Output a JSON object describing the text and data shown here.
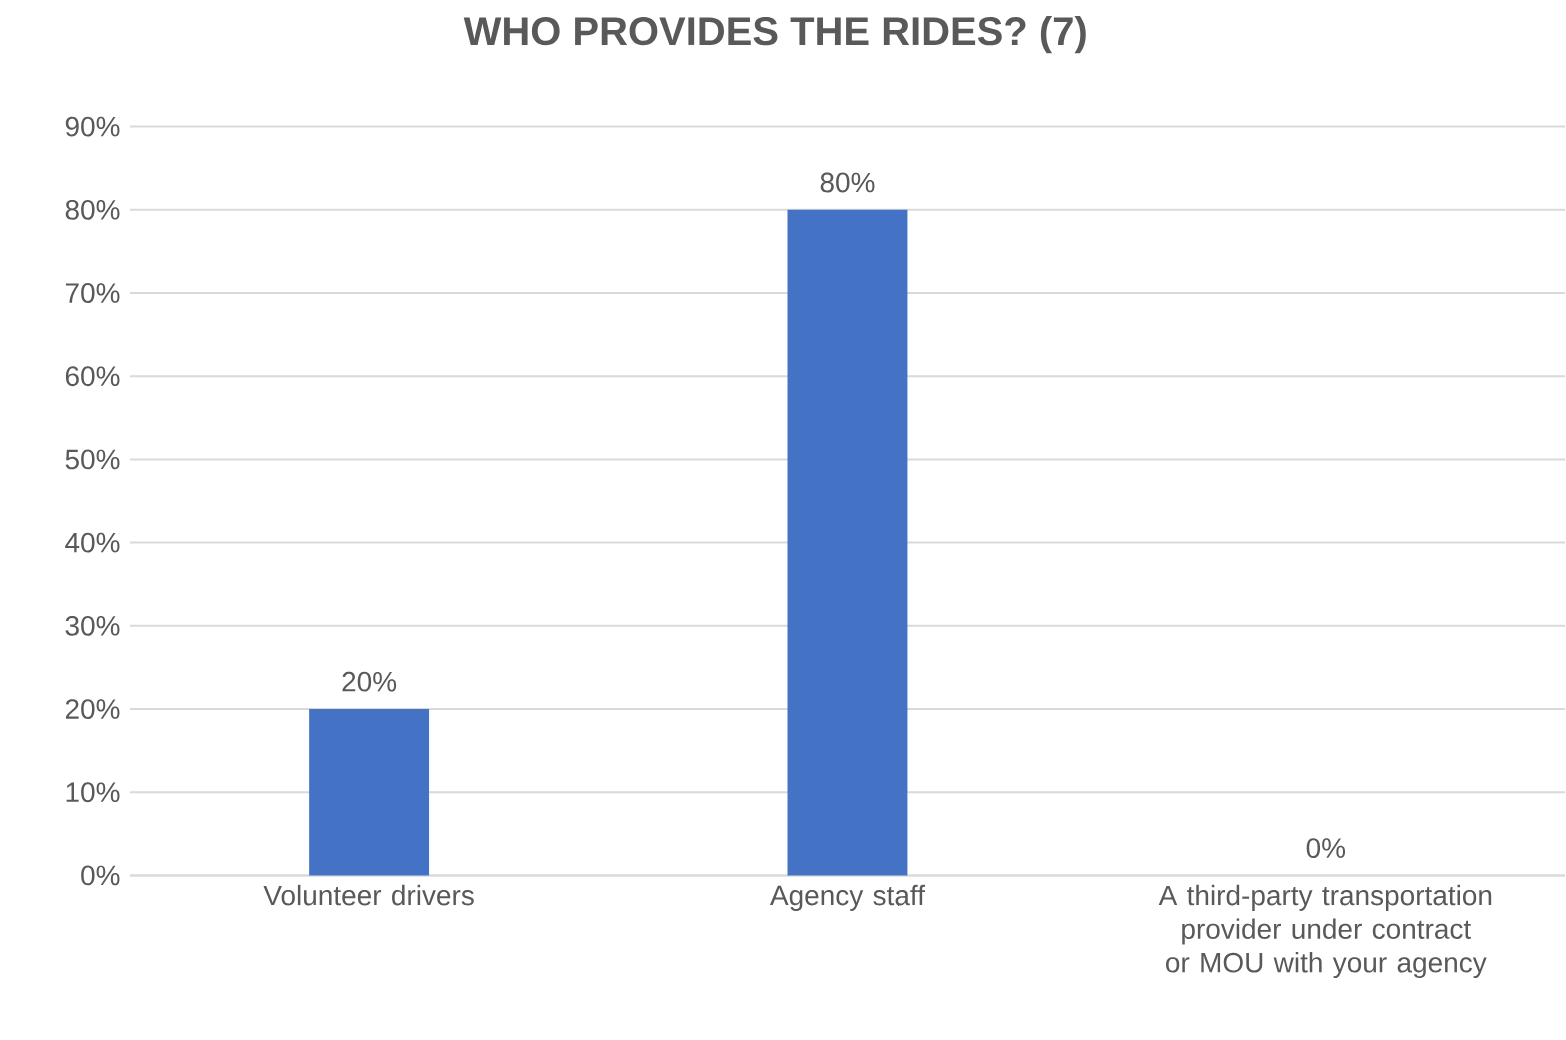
{
  "chart_data": {
    "type": "bar",
    "title": "WHO PROVIDES THE RIDES? (7)",
    "categories": [
      "Volunteer drivers",
      "Agency staff",
      "A third-party transportation provider under contract or MOU with your agency"
    ],
    "values": [
      20,
      80,
      0
    ],
    "value_labels": [
      "20%",
      "80%",
      "0%"
    ],
    "color": "#4472c4",
    "ylim": [
      0,
      90
    ],
    "yticks": [
      {
        "value": 0,
        "label": "0%"
      },
      {
        "value": 10,
        "label": "10%"
      },
      {
        "value": 20,
        "label": "20%"
      },
      {
        "value": 30,
        "label": "30%"
      },
      {
        "value": 40,
        "label": "40%"
      },
      {
        "value": 50,
        "label": "50%"
      },
      {
        "value": 60,
        "label": "60%"
      },
      {
        "value": 70,
        "label": "70%"
      },
      {
        "value": 80,
        "label": "80%"
      },
      {
        "value": 90,
        "label": "90%"
      }
    ],
    "grid": "y"
  }
}
